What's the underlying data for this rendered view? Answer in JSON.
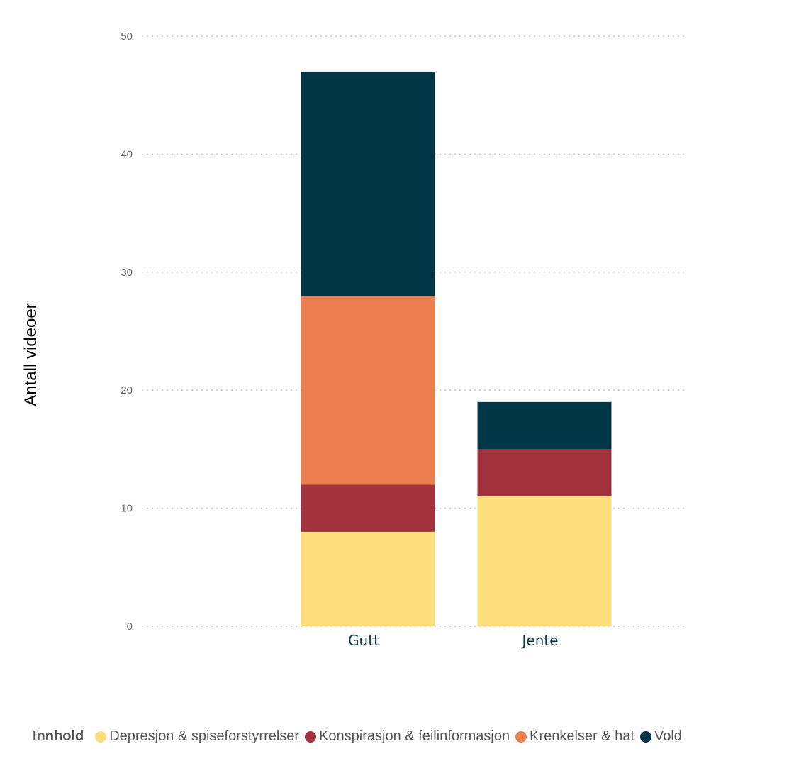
{
  "chart_data": {
    "type": "bar",
    "stacked": true,
    "title": "",
    "xlabel": "",
    "ylabel": "Antall videoer",
    "ylim": [
      0,
      50
    ],
    "yticks": [
      0,
      10,
      20,
      30,
      40,
      50
    ],
    "grid": true,
    "categories": [
      "Gutt",
      "Jente"
    ],
    "legend_title": "Innhold",
    "legend_position": "bottom",
    "series": [
      {
        "name": "Depresjon & spiseforstyrrelser",
        "color": "#FDDE7C",
        "values": [
          8,
          11
        ]
      },
      {
        "name": "Konspirasjon & feilinformasjon",
        "color": "#A1323D",
        "values": [
          4,
          4
        ]
      },
      {
        "name": "Krenkelser & hat",
        "color": "#EC7F50",
        "values": [
          16,
          0
        ]
      },
      {
        "name": "Vold",
        "color": "#003646",
        "values": [
          19,
          4
        ]
      }
    ]
  }
}
